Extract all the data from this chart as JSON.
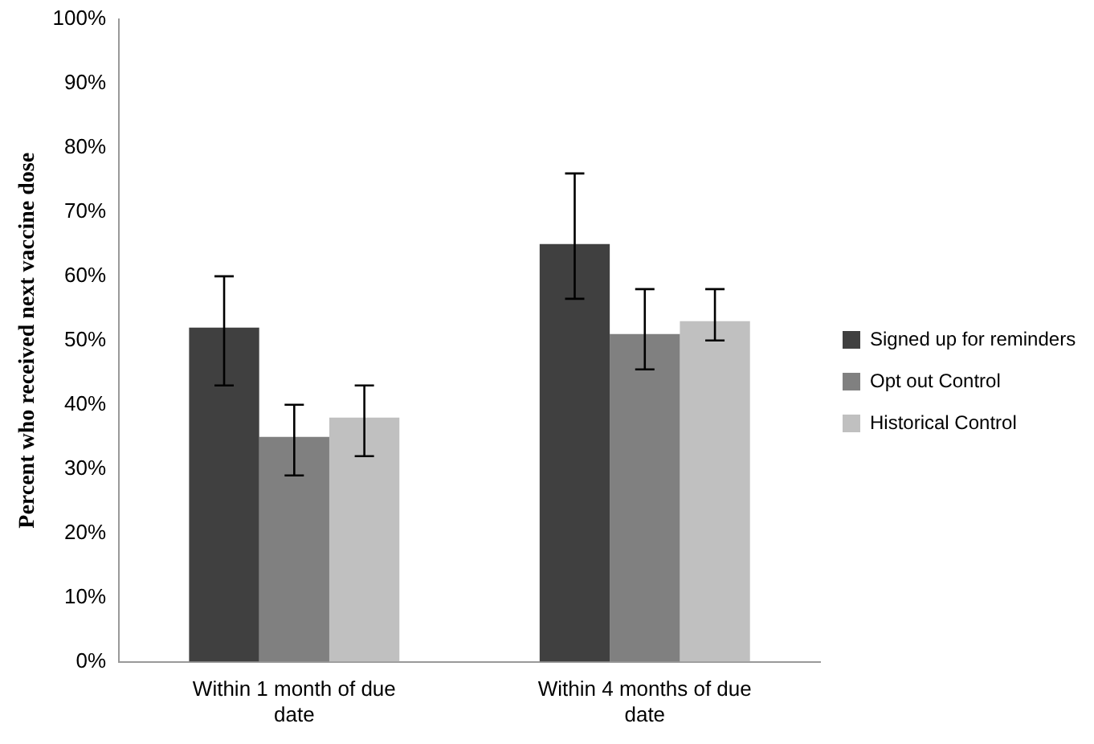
{
  "chart_data": {
    "type": "bar",
    "ylabel": "Percent who received next vaccine dose",
    "categories": [
      "Within 1 month of due date",
      "Within 4 months of due date"
    ],
    "series": [
      {
        "name": "Signed up for reminders",
        "color": "#404040",
        "values": [
          52,
          65
        ],
        "errors": [
          [
            43,
            60
          ],
          [
            56.5,
            76
          ]
        ]
      },
      {
        "name": "Opt out Control",
        "color": "#808080",
        "values": [
          35,
          51
        ],
        "errors": [
          [
            29,
            40
          ],
          [
            45.5,
            58
          ]
        ]
      },
      {
        "name": "Historical Control",
        "color": "#c0c0c0",
        "values": [
          38,
          53
        ],
        "errors": [
          [
            32,
            43
          ],
          [
            50,
            58
          ]
        ]
      }
    ],
    "ylim": [
      0,
      100
    ],
    "yticks": [
      {
        "value": 0,
        "label": "0%"
      },
      {
        "value": 10,
        "label": "10%"
      },
      {
        "value": 20,
        "label": "20%"
      },
      {
        "value": 30,
        "label": "30%"
      },
      {
        "value": 40,
        "label": "40%"
      },
      {
        "value": 50,
        "label": "50%"
      },
      {
        "value": 60,
        "label": "60%"
      },
      {
        "value": 70,
        "label": "70%"
      },
      {
        "value": 80,
        "label": "80%"
      },
      {
        "value": 90,
        "label": "90%"
      },
      {
        "value": 100,
        "label": "100%"
      }
    ],
    "grid": false,
    "legend": "right"
  }
}
